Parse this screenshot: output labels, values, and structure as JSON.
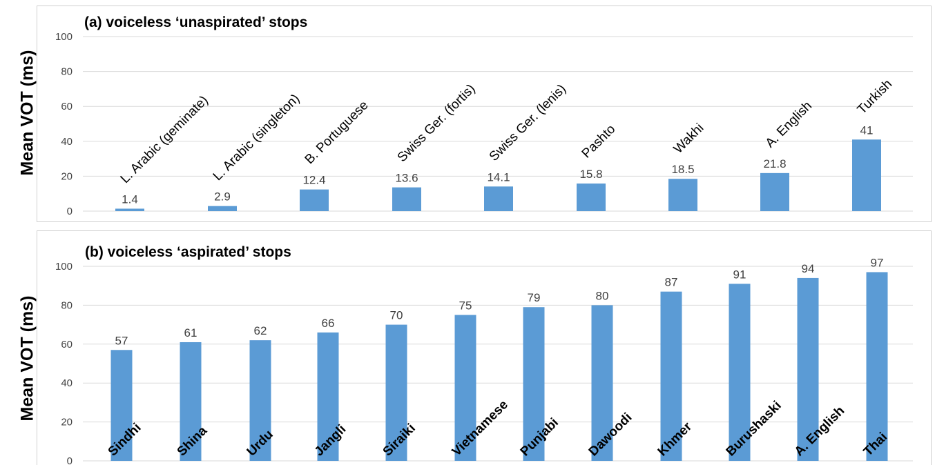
{
  "y_axis_label": "Mean VOT (ms)",
  "chart_data": [
    {
      "type": "bar",
      "title": "(a) voiceless ‘unaspirated’ stops",
      "ylabel": "Mean VOT (ms)",
      "ylim": [
        0,
        100
      ],
      "yticks": [
        0,
        20,
        40,
        60,
        80,
        100
      ],
      "grid": true,
      "color": "#5b9bd5",
      "categories": [
        "L. Arabic  (geminate)",
        "L. Arabic (singleton)",
        "B. Portuguese",
        "Swiss Ger. (fortis)",
        "Swiss Ger. (lenis)",
        "Pashto",
        "Wakhi",
        "A. English",
        "Turkish"
      ],
      "values": [
        1.4,
        2.9,
        12.4,
        13.6,
        14.1,
        15.8,
        18.5,
        21.8,
        41
      ],
      "value_labels": [
        "1.4",
        "2.9",
        "12.4",
        "13.6",
        "14.1",
        "15.8",
        "18.5",
        "21.8",
        "41"
      ]
    },
    {
      "type": "bar",
      "title": "(b) voiceless ‘aspirated’ stops",
      "ylabel": "Mean VOT (ms)",
      "ylim": [
        0,
        100
      ],
      "yticks": [
        0,
        20,
        40,
        60,
        80,
        100
      ],
      "grid": true,
      "color": "#5b9bd5",
      "categories": [
        "Sindhi",
        "Shina",
        "Urdu",
        "Jangli",
        "Siraiki",
        "Vietnamese",
        "Punjabi",
        "Dawoodi",
        "Khmer",
        "Burushaski",
        "A. English",
        "Thai"
      ],
      "values": [
        57,
        61,
        62,
        66,
        70,
        75,
        79,
        80,
        87,
        91,
        94,
        97
      ],
      "value_labels": [
        "57",
        "61",
        "62",
        "66",
        "70",
        "75",
        "79",
        "80",
        "87",
        "91",
        "94",
        "97"
      ]
    }
  ]
}
